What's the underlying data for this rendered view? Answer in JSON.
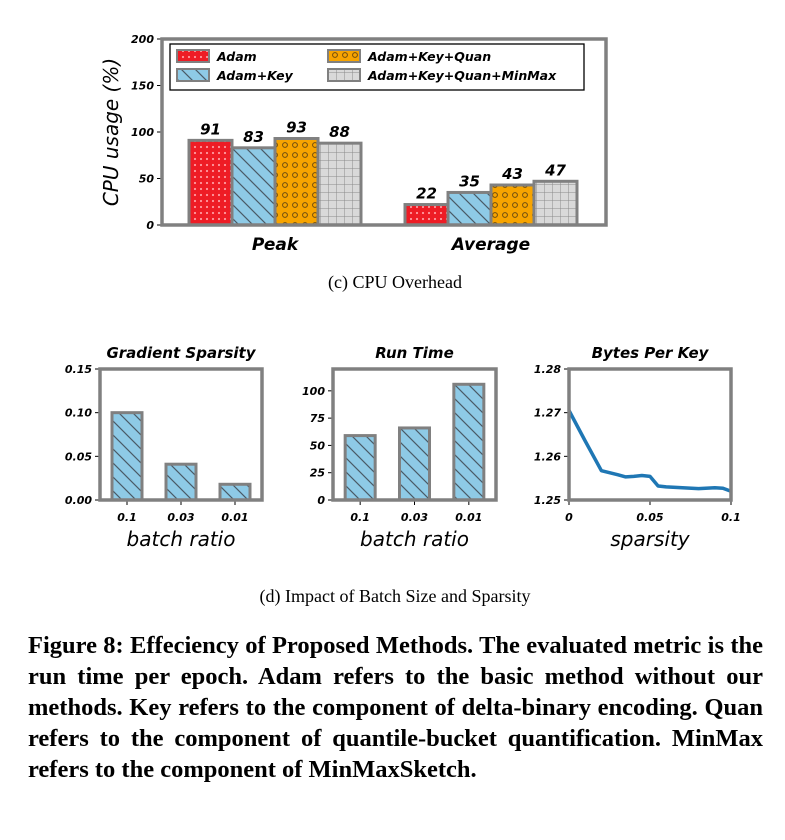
{
  "chart_data": [
    {
      "type": "bar",
      "caption": "(c) CPU Overhead",
      "ylabel": "CPU usage (%)",
      "ylim": [
        0,
        200
      ],
      "yticks": [
        "0",
        "50",
        "100",
        "150",
        "200"
      ],
      "categories": [
        "Peak",
        "Average"
      ],
      "series": [
        {
          "name": "Adam",
          "values": [
            91,
            22
          ],
          "color": "#ee1c25",
          "pattern": "dots"
        },
        {
          "name": "Adam+Key",
          "values": [
            83,
            35
          ],
          "color": "#8ecae6",
          "pattern": "diagonal"
        },
        {
          "name": "Adam+Key+Quan",
          "values": [
            93,
            43
          ],
          "color": "#f7a400",
          "pattern": "circles"
        },
        {
          "name": "Adam+Key+Quan+MinMax",
          "values": [
            88,
            47
          ],
          "color": "#d9d9d9",
          "pattern": "grid"
        }
      ],
      "data_labels": [
        [
          "91",
          "22"
        ],
        [
          "83",
          "35"
        ],
        [
          "93",
          "43"
        ],
        [
          "88",
          "47"
        ]
      ],
      "legend": "top, two columns",
      "grid": false
    },
    {
      "type": "bar",
      "title": "Gradient Sparsity",
      "xlabel": "batch ratio",
      "categories": [
        "0.1",
        "0.03",
        "0.01"
      ],
      "values": [
        0.1,
        0.041,
        0.018
      ],
      "ylim": [
        0,
        0.15
      ],
      "yticks": [
        "0.00",
        "0.05",
        "0.10",
        "0.15"
      ],
      "color": "#8ecae6",
      "grid": false
    },
    {
      "type": "bar",
      "title": "Run Time",
      "xlabel": "batch ratio",
      "categories": [
        "0.1",
        "0.03",
        "0.01"
      ],
      "values": [
        59,
        66,
        106
      ],
      "ylim": [
        0,
        120
      ],
      "yticks": [
        "0",
        "25",
        "50",
        "75",
        "100"
      ],
      "color": "#8ecae6",
      "grid": false
    },
    {
      "type": "line",
      "title": "Bytes Per Key",
      "xlabel": "sparsity",
      "x": [
        0,
        0.01,
        0.02,
        0.03,
        0.035,
        0.04,
        0.045,
        0.05,
        0.055,
        0.06,
        0.07,
        0.08,
        0.09,
        0.095,
        0.1
      ],
      "y": [
        1.2705,
        1.2635,
        1.2567,
        1.2558,
        1.2553,
        1.2554,
        1.2556,
        1.2554,
        1.2532,
        1.253,
        1.2528,
        1.2526,
        1.2528,
        1.2527,
        1.252
      ],
      "xlim": [
        0,
        0.1
      ],
      "ylim": [
        1.25,
        1.28
      ],
      "xticks": [
        "0",
        "0.05",
        "0.1"
      ],
      "yticks": [
        "1.25",
        "1.26",
        "1.27",
        "1.28"
      ],
      "color": "#1f77b4",
      "caption": "(d) Impact of Batch Size and Sparsity",
      "grid": false
    }
  ],
  "figure_caption": "Figure 8: Effeciency of Proposed Methods. The evaluated metric is the run time per epoch. Adam refers to the basic method without our methods. Key refers to the component of delta-binary encoding. Quan refers to the component of quantile-bucket quantification. MinMax refers to the component of MinMaxSketch."
}
